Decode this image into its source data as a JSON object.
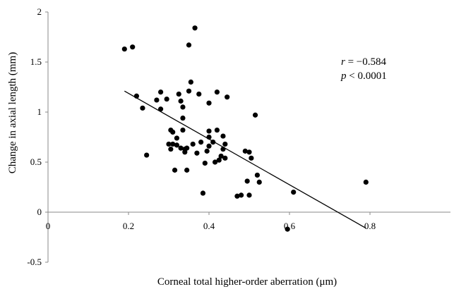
{
  "chart_data": {
    "type": "scatter",
    "xlabel": "Corneal total higher-order aberration (μm)",
    "ylabel": "Change in axial length (mm)",
    "xlim": [
      0,
      1.0
    ],
    "ylim": [
      -0.5,
      2
    ],
    "x_ticks": [
      "0",
      "0.2",
      "0.4",
      "0.6",
      "0.8"
    ],
    "x_tick_values": [
      0,
      0.2,
      0.4,
      0.6,
      0.8
    ],
    "y_ticks": [
      "-0.5",
      "0",
      "0.5",
      "1",
      "1.5",
      "2"
    ],
    "y_tick_values": [
      -0.5,
      0,
      0.5,
      1,
      1.5,
      2
    ],
    "grid": false,
    "point_color": "#000000",
    "annotation": {
      "r_label": "r",
      "r_value": " = −0.584",
      "p_label": "p",
      "p_value": " < 0.0001"
    },
    "trendline": {
      "x": [
        0.19,
        0.79
      ],
      "y": [
        1.21,
        -0.16
      ]
    },
    "points": [
      [
        0.19,
        1.63
      ],
      [
        0.21,
        1.65
      ],
      [
        0.22,
        1.16
      ],
      [
        0.235,
        1.04
      ],
      [
        0.245,
        0.57
      ],
      [
        0.27,
        1.12
      ],
      [
        0.28,
        1.2
      ],
      [
        0.28,
        1.03
      ],
      [
        0.295,
        1.13
      ],
      [
        0.3,
        0.68
      ],
      [
        0.305,
        0.63
      ],
      [
        0.305,
        0.82
      ],
      [
        0.31,
        0.8
      ],
      [
        0.31,
        0.68
      ],
      [
        0.315,
        0.42
      ],
      [
        0.32,
        0.67
      ],
      [
        0.32,
        0.74
      ],
      [
        0.325,
        1.18
      ],
      [
        0.33,
        0.64
      ],
      [
        0.33,
        1.11
      ],
      [
        0.335,
        1.05
      ],
      [
        0.335,
        0.82
      ],
      [
        0.335,
        0.94
      ],
      [
        0.34,
        0.6
      ],
      [
        0.34,
        0.63
      ],
      [
        0.345,
        0.42
      ],
      [
        0.345,
        0.64
      ],
      [
        0.35,
        1.21
      ],
      [
        0.35,
        1.67
      ],
      [
        0.355,
        1.3
      ],
      [
        0.36,
        0.68
      ],
      [
        0.365,
        1.84
      ],
      [
        0.37,
        0.59
      ],
      [
        0.375,
        1.18
      ],
      [
        0.38,
        0.7
      ],
      [
        0.385,
        0.19
      ],
      [
        0.39,
        0.49
      ],
      [
        0.395,
        0.61
      ],
      [
        0.4,
        0.66
      ],
      [
        0.4,
        0.81
      ],
      [
        0.4,
        0.75
      ],
      [
        0.4,
        1.09
      ],
      [
        0.41,
        0.7
      ],
      [
        0.415,
        0.5
      ],
      [
        0.42,
        0.82
      ],
      [
        0.42,
        1.2
      ],
      [
        0.425,
        0.52
      ],
      [
        0.43,
        0.56
      ],
      [
        0.435,
        0.63
      ],
      [
        0.435,
        0.76
      ],
      [
        0.44,
        0.68
      ],
      [
        0.44,
        0.54
      ],
      [
        0.445,
        1.15
      ],
      [
        0.47,
        0.16
      ],
      [
        0.48,
        0.17
      ],
      [
        0.49,
        0.61
      ],
      [
        0.495,
        0.31
      ],
      [
        0.5,
        0.6
      ],
      [
        0.5,
        0.17
      ],
      [
        0.505,
        0.54
      ],
      [
        0.515,
        0.97
      ],
      [
        0.52,
        0.37
      ],
      [
        0.525,
        0.3
      ],
      [
        0.595,
        -0.17
      ],
      [
        0.61,
        0.2
      ],
      [
        0.79,
        0.3
      ]
    ]
  }
}
